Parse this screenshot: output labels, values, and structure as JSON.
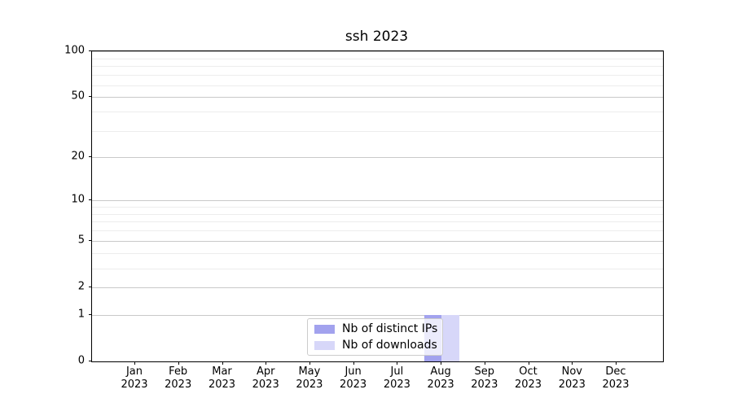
{
  "figure": {
    "title": "ssh 2023"
  },
  "chart_data": {
    "type": "bar",
    "title": "ssh 2023",
    "categories": [
      "Jan 2023",
      "Feb 2023",
      "Mar 2023",
      "Apr 2023",
      "May 2023",
      "Jun 2023",
      "Jul 2023",
      "Aug 2023",
      "Sep 2023",
      "Oct 2023",
      "Nov 2023",
      "Dec 2023"
    ],
    "series": [
      {
        "name": "Nb of distinct IPs",
        "color": "#a2a2ee",
        "values": [
          0,
          0,
          0,
          0,
          0,
          0,
          0,
          1,
          0,
          0,
          0,
          0
        ]
      },
      {
        "name": "Nb of downloads",
        "color": "#d7d7f9",
        "values": [
          0,
          0,
          0,
          0,
          0,
          0,
          0,
          1,
          0,
          0,
          0,
          0
        ]
      }
    ],
    "xlabel": "",
    "ylabel": "",
    "yscale": "log1p",
    "ylim": [
      0,
      100
    ],
    "yticks": [
      0,
      1,
      2,
      5,
      10,
      20,
      50,
      100
    ],
    "minor_yticks": [
      3,
      4,
      6,
      7,
      8,
      9,
      30,
      40,
      60,
      70,
      80,
      90
    ],
    "grid": "horizontal",
    "legend_position": "lower center",
    "colors": {
      "major_grid": "#c9c9c9",
      "minor_grid": "#ededed",
      "axis": "#000000",
      "background": "#ffffff"
    }
  }
}
